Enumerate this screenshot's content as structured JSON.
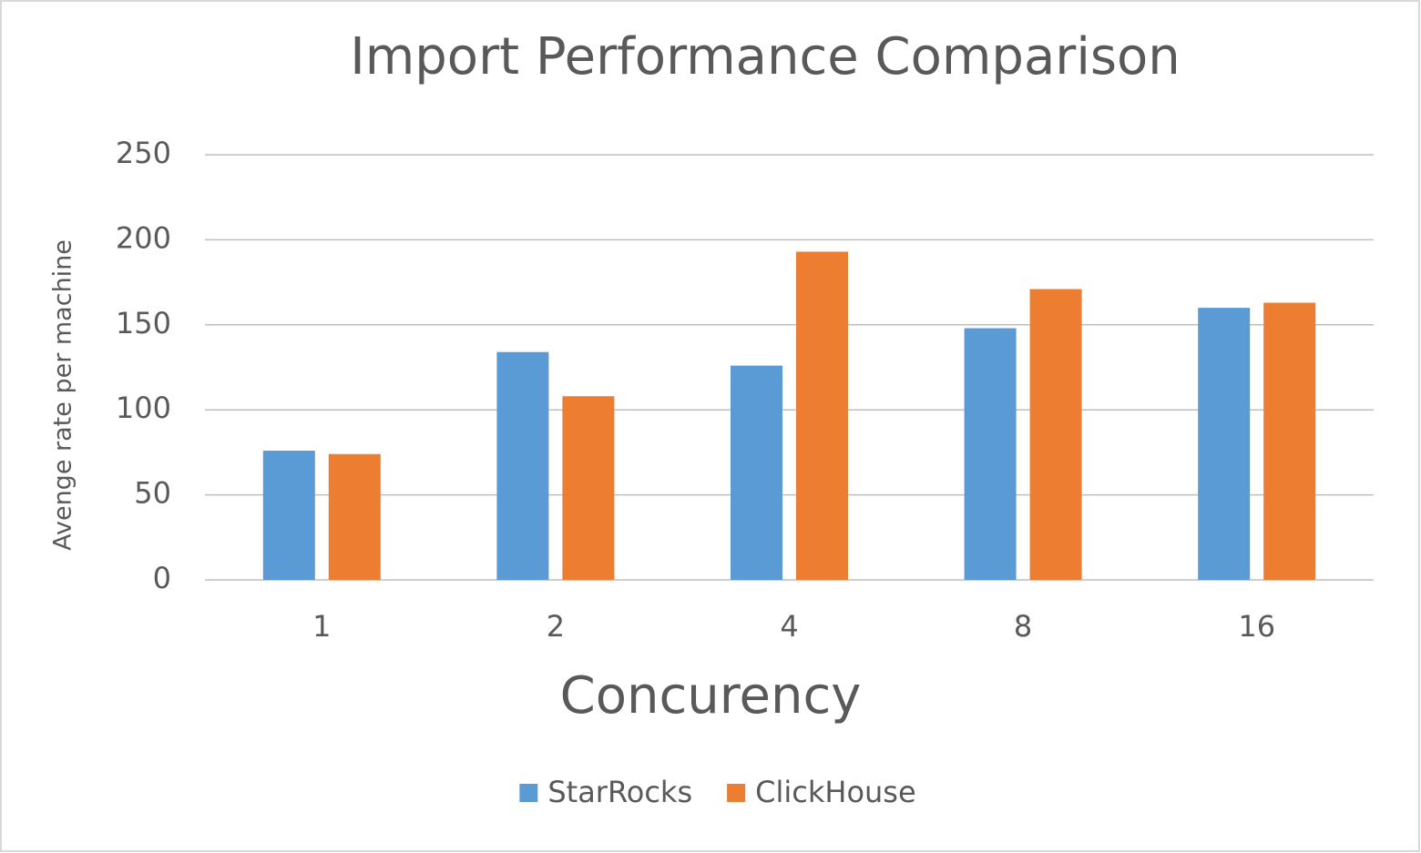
{
  "chart_data": {
    "type": "bar",
    "title": "Import Performance Comparison",
    "x_label": "Concurency",
    "y_label": "Avenge rate per machine",
    "categories": [
      "1",
      "2",
      "4",
      "8",
      "16"
    ],
    "series": [
      {
        "name": "StarRocks",
        "color": "#5b9bd5",
        "values": [
          76,
          134,
          126,
          148,
          160
        ]
      },
      {
        "name": "ClickHouse",
        "color": "#ed7d31",
        "values": [
          74,
          108,
          193,
          171,
          163
        ]
      }
    ],
    "ylim": [
      0,
      250
    ],
    "yticks": [
      0,
      50,
      100,
      150,
      200,
      250
    ],
    "grid": true,
    "legend": "bottom"
  }
}
